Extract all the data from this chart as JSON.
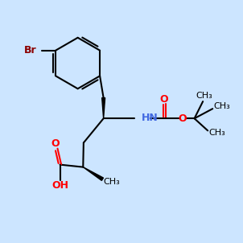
{
  "bg_color": "#cce5ff",
  "bond_color": "#000000",
  "br_color": "#8b0000",
  "o_color": "#ff0000",
  "nh_color": "#4169e1",
  "figsize": [
    3.02,
    3.02
  ],
  "dpi": 100,
  "xlim": [
    0,
    10
  ],
  "ylim": [
    0,
    10
  ]
}
